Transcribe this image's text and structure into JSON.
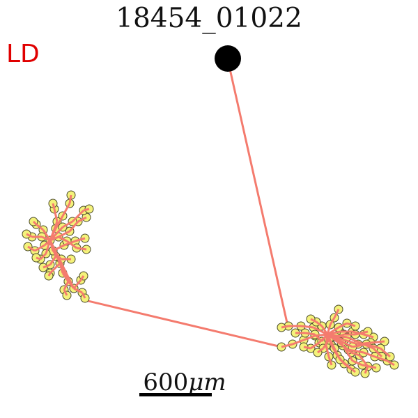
{
  "figure": {
    "title": "18454_01022",
    "corner_tag": "LD",
    "corner_tag_color": "#e00000",
    "scale_bar_number": "600",
    "scale_bar_unit": "μm"
  },
  "colors": {
    "path_line": "#f47b6e",
    "node_fill": "#f4f27a",
    "node_stroke": "#4a4a2a",
    "soma": "#000000"
  },
  "icons": {
    "soma": "soma-dot",
    "arbor": "branch-cluster"
  }
}
